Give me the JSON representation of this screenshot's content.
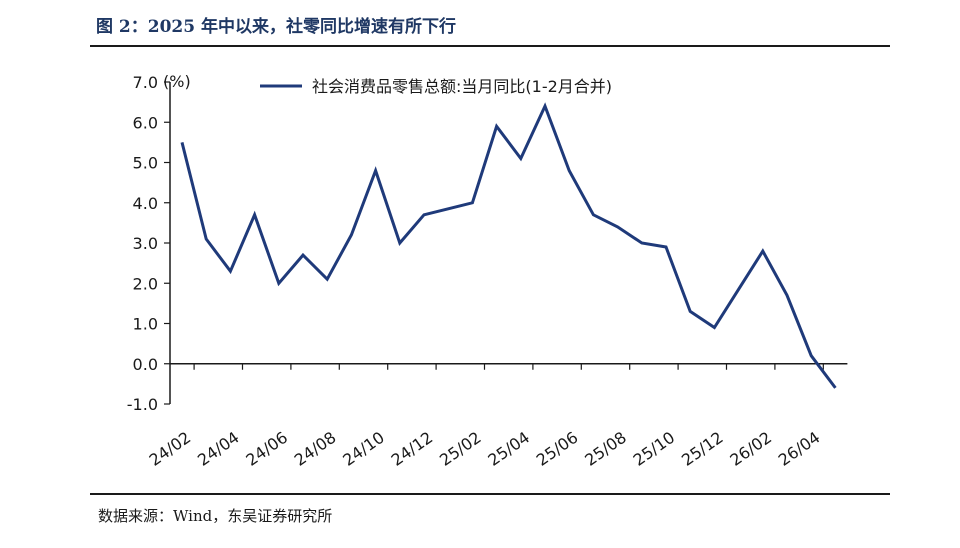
{
  "header": {
    "title": "图 2：2025 年中以来，社零同比增速有所下行"
  },
  "footer": {
    "source": "数据来源：Wind，东吴证券研究所"
  },
  "colors": {
    "series": "#1f3a7a",
    "title": "#1f3864",
    "axis": "#1a1a1a"
  },
  "chart_data": {
    "type": "line",
    "ylabel_unit": "(%)",
    "ylim": [
      -1.0,
      7.0
    ],
    "yticks": [
      "7.0",
      "6.0",
      "5.0",
      "4.0",
      "3.0",
      "2.0",
      "1.0",
      "0.0",
      "-1.0"
    ],
    "ytick_values": [
      7,
      6,
      5,
      4,
      3,
      2,
      1,
      0,
      -1
    ],
    "xticks": [
      "24/02",
      "24/04",
      "24/06",
      "24/08",
      "24/10",
      "24/12",
      "25/02",
      "25/04",
      "25/06",
      "25/08",
      "25/10",
      "25/12",
      "26/02",
      "26/04"
    ],
    "xtick_index": [
      0,
      2,
      4,
      6,
      8,
      10,
      12,
      14,
      16,
      18,
      20,
      22,
      24,
      26
    ],
    "legend_position": "top",
    "grid": false,
    "series": [
      {
        "name": "社会消费品零售总额:当月同比(1-2月合并)",
        "x": [
          "24/02",
          "24/03",
          "24/04",
          "24/05",
          "24/06",
          "24/07",
          "24/08",
          "24/09",
          "24/10",
          "24/11",
          "24/12",
          "25/01",
          "25/02",
          "25/03",
          "25/04",
          "25/05",
          "25/06",
          "25/07",
          "25/08",
          "25/09",
          "25/10",
          "25/11",
          "25/12",
          "26/01",
          "26/02",
          "26/03",
          "26/04",
          "26/05"
        ],
        "values": [
          5.5,
          3.1,
          2.3,
          3.7,
          2.0,
          2.7,
          2.1,
          3.2,
          4.8,
          3.0,
          3.7,
          3.85,
          4.0,
          5.9,
          5.1,
          6.4,
          4.8,
          3.7,
          3.4,
          3.0,
          2.9,
          1.3,
          0.9,
          1.85,
          2.8,
          1.7,
          0.2,
          -0.6
        ]
      }
    ]
  }
}
